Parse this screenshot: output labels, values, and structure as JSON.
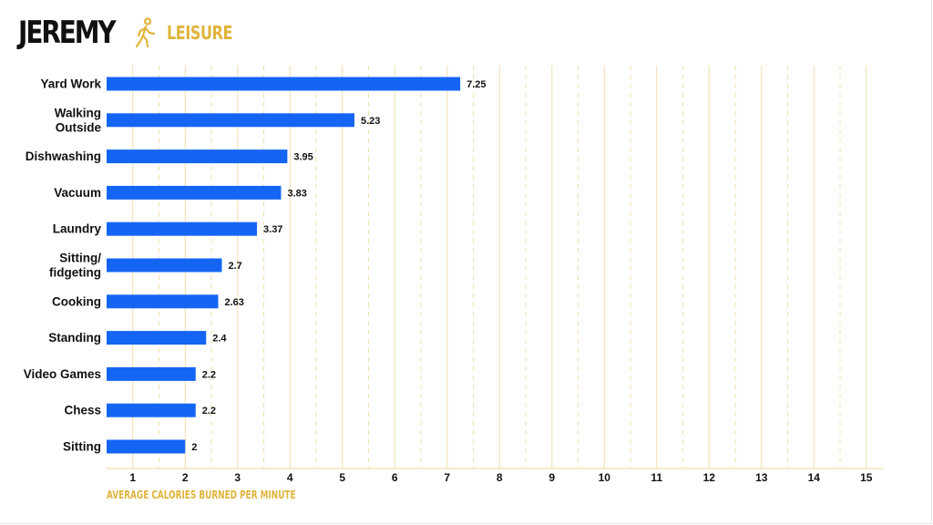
{
  "header": {
    "name": "JEREMY",
    "category": "LEISURE",
    "category_icon": "walking-person-icon"
  },
  "colors": {
    "bar": "#1565f5",
    "accent": "#e0b43c",
    "grid": "#f1dfae",
    "text": "#111111"
  },
  "chart_data": {
    "type": "bar",
    "orientation": "horizontal",
    "categories": [
      [
        "Yard Work"
      ],
      [
        "Walking",
        "Outside"
      ],
      [
        "Dishwashing"
      ],
      [
        "Vacuum"
      ],
      [
        "Laundry"
      ],
      [
        "Sitting/",
        "fidgeting"
      ],
      [
        "Cooking"
      ],
      [
        "Standing"
      ],
      [
        "Video Games"
      ],
      [
        "Chess"
      ],
      [
        "Sitting"
      ]
    ],
    "values": [
      7.25,
      5.23,
      3.95,
      3.83,
      3.37,
      2.7,
      2.63,
      2.4,
      2.2,
      2.2,
      2
    ],
    "value_labels": [
      "7.25",
      "5.23",
      "3.95",
      "3.83",
      "3.37",
      "2.7",
      "2.63",
      "2.4",
      "2.2",
      "2.2",
      "2"
    ],
    "xlabel": "AVERAGE CALORIES BURNED PER MINUTE",
    "xticks": [
      "1",
      "2",
      "3",
      "4",
      "5",
      "6",
      "7",
      "8",
      "9",
      "10",
      "11",
      "12",
      "13",
      "14",
      "15"
    ],
    "xlim": [
      0.5,
      15
    ],
    "grid": "vertical, solid at integers, dashed at half-steps",
    "legend": "none"
  }
}
